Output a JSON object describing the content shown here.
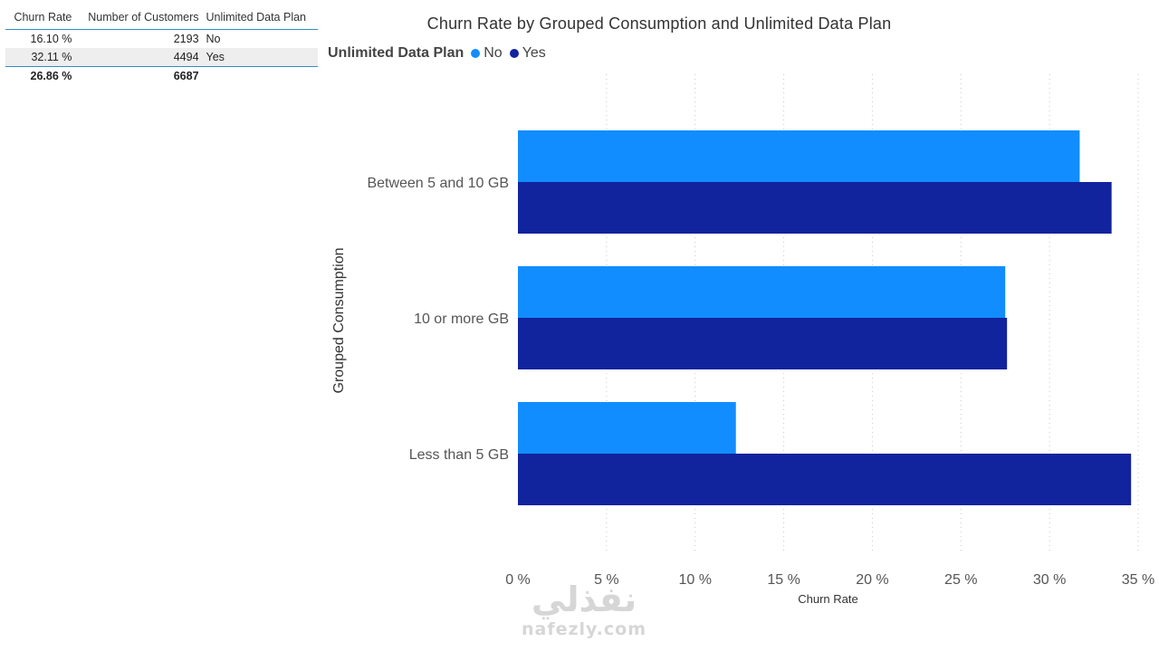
{
  "table": {
    "headers": [
      "Churn Rate",
      "Number of Customers",
      "Unlimited Data Plan"
    ],
    "rows": [
      {
        "churn_rate": "16.10 %",
        "customers": "2193",
        "plan": "No"
      },
      {
        "churn_rate": "32.11 %",
        "customers": "4494",
        "plan": "Yes"
      }
    ],
    "total": {
      "churn_rate": "26.86 %",
      "customers": "6687",
      "plan": ""
    }
  },
  "chart_data": {
    "type": "bar",
    "orientation": "horizontal",
    "title": "Churn Rate by Grouped Consumption and Unlimited Data Plan",
    "xlabel": "Churn Rate",
    "ylabel": "Grouped Consumption",
    "legend_title": "Unlimited Data Plan",
    "legend_position": "top-left",
    "categories": [
      "Between 5 and 10 GB",
      "10 or more GB",
      "Less than 5 GB"
    ],
    "series": [
      {
        "name": "No",
        "color": "#118dff",
        "values": [
          31.7,
          27.5,
          12.3
        ]
      },
      {
        "name": "Yes",
        "color": "#12239e",
        "values": [
          33.5,
          27.6,
          34.6
        ]
      }
    ],
    "xlim": [
      0,
      35
    ],
    "xticks": [
      0,
      5,
      10,
      15,
      20,
      25,
      30,
      35
    ],
    "xtick_labels": [
      "0 %",
      "5 %",
      "10 %",
      "15 %",
      "20 %",
      "25 %",
      "30 %",
      "35 %"
    ],
    "grid": "vertical-dotted"
  },
  "watermark": {
    "arabic": "نفذلي",
    "latin": "nafezly.com"
  }
}
